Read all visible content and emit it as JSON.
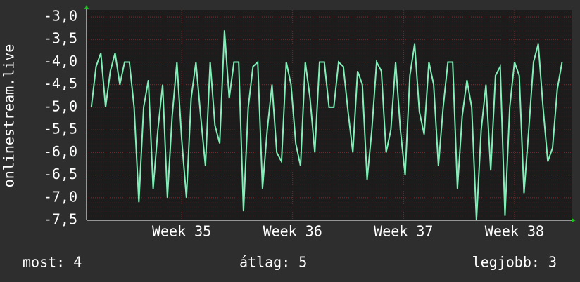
{
  "chart_data": {
    "type": "line",
    "y_label": "onlinestream.live",
    "x": [
      0.3,
      0.6,
      0.9,
      1.2,
      1.5,
      1.8,
      2.1,
      2.4,
      2.7,
      3.0,
      3.3,
      3.6,
      3.9,
      4.2,
      4.5,
      4.8,
      5.1,
      5.4,
      5.7,
      6.0,
      6.3,
      6.6,
      6.9,
      7.2,
      7.5,
      7.8,
      8.1,
      8.4,
      8.7,
      9.0,
      9.3,
      9.6,
      9.9,
      10.2,
      10.5,
      10.8,
      11.1,
      11.4,
      11.7,
      12.0,
      12.3,
      12.6,
      12.9,
      13.2,
      13.5,
      13.8,
      14.1,
      14.4,
      14.7,
      15.0,
      15.3,
      15.6,
      15.9,
      16.2,
      16.5,
      16.8,
      17.1,
      17.4,
      17.7,
      18.0,
      18.3,
      18.6,
      18.9,
      19.2,
      19.5,
      19.8,
      20.1,
      20.4,
      20.7,
      21.0,
      21.3,
      21.6,
      21.9,
      22.2,
      22.5,
      22.8,
      23.1,
      23.4,
      23.7,
      24.0,
      24.3,
      24.6,
      24.9,
      25.2,
      25.5,
      25.8,
      26.1,
      26.4,
      26.7,
      27.0,
      27.3,
      27.6,
      27.9,
      28.2,
      28.5,
      28.8,
      29.1,
      29.4,
      29.7,
      30.0
    ],
    "series": [
      {
        "name": "onlinestream.live",
        "color": "#80f0b8",
        "values": [
          -5,
          -4.1,
          -3.8,
          -5,
          -4.2,
          -3.8,
          -4.5,
          -4,
          -4,
          -5,
          -7.1,
          -5,
          -4.4,
          -6.8,
          -5.5,
          -4.5,
          -7,
          -5.2,
          -4,
          -5.7,
          -7,
          -4.8,
          -4,
          -5.2,
          -6.3,
          -4,
          -5.4,
          -5.8,
          -3.3,
          -4.8,
          -4,
          -4,
          -7.3,
          -5,
          -4.1,
          -4,
          -6.8,
          -5.5,
          -4.5,
          -6,
          -6.2,
          -4,
          -4.5,
          -5.8,
          -6.3,
          -4,
          -4.8,
          -6,
          -4,
          -4,
          -5,
          -5,
          -4,
          -4.1,
          -5.1,
          -6,
          -4.2,
          -4.5,
          -6.6,
          -5.5,
          -4,
          -4.2,
          -6,
          -5.5,
          -4,
          -5.5,
          -6.5,
          -4.3,
          -3.6,
          -5.1,
          -5.6,
          -4,
          -4.5,
          -6.3,
          -5,
          -4,
          -4,
          -6.8,
          -5.2,
          -4.4,
          -5,
          -7.5,
          -5.5,
          -4.5,
          -6.4,
          -4.3,
          -4.1,
          -7.4,
          -5,
          -4,
          -4.3,
          -6.9,
          -5.5,
          -4,
          -3.6,
          -5,
          -6.2,
          -5.9,
          -4.6,
          -4
        ]
      }
    ],
    "xlim": [
      0,
      30.6
    ],
    "xticks": [
      {
        "value": 6,
        "label": "Week 35"
      },
      {
        "value": 13,
        "label": "Week 36"
      },
      {
        "value": 20,
        "label": "Week 37"
      },
      {
        "value": 27,
        "label": "Week 38"
      }
    ],
    "ylim": [
      -7.5,
      -3.0
    ],
    "yticks": [
      {
        "value": -3.0,
        "label": "-3,0"
      },
      {
        "value": -3.5,
        "label": "-3,5"
      },
      {
        "value": -4.0,
        "label": "-4,0"
      },
      {
        "value": -4.5,
        "label": "-4,5"
      },
      {
        "value": -5.0,
        "label": "-5,0"
      },
      {
        "value": -5.5,
        "label": "-5,5"
      },
      {
        "value": -6.0,
        "label": "-6,0"
      },
      {
        "value": -6.5,
        "label": "-6,5"
      },
      {
        "value": -7.0,
        "label": "-7,0"
      },
      {
        "value": -7.5,
        "label": "-7,5"
      }
    ],
    "grid": true
  },
  "footer": {
    "current": "most: 4",
    "average": "átlag: 5",
    "best": "legjobb: 3"
  }
}
